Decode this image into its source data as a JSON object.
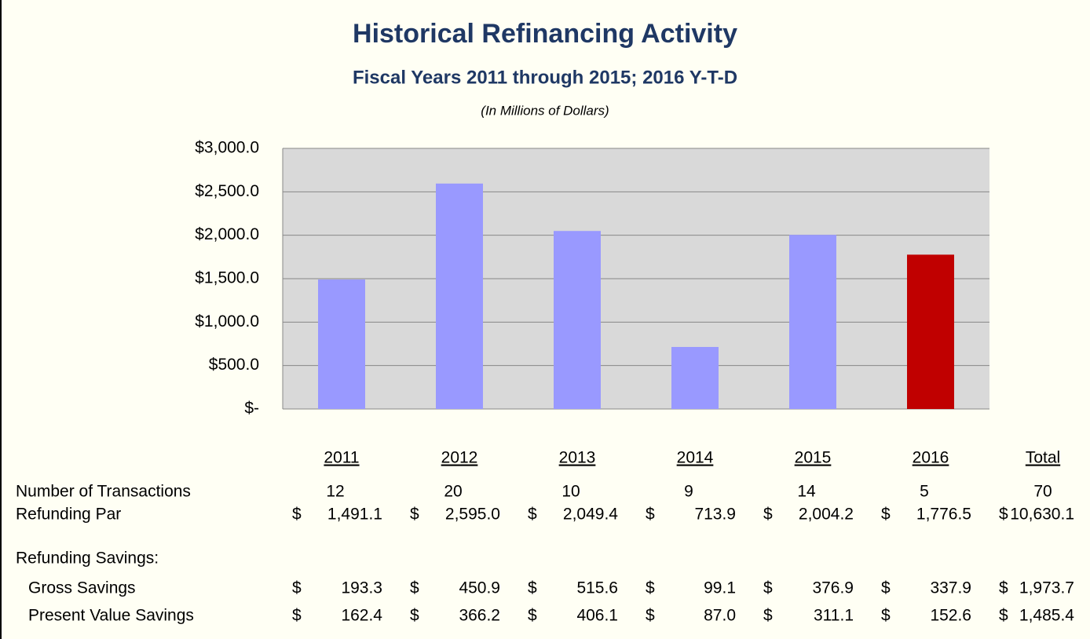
{
  "chart_data": {
    "type": "bar",
    "title": "Historical Refinancing Activity",
    "subtitle": "Fiscal Years 2011 through 2015; 2016 Y-T-D",
    "note": "(In Millions of Dollars)",
    "categories": [
      "2011",
      "2012",
      "2013",
      "2014",
      "2015",
      "2016"
    ],
    "values": [
      1491.1,
      2595.0,
      2049.4,
      713.9,
      2004.2,
      1776.5
    ],
    "value_labels": [
      "1,491.1",
      "2,595.0",
      "2,049.4",
      "713.9",
      "2,004.2",
      "1,776.5"
    ],
    "colors": [
      "#9999ff",
      "#9999ff",
      "#9999ff",
      "#9999ff",
      "#9999ff",
      "#c00000"
    ],
    "ylim": [
      0,
      3000
    ],
    "yticks": [
      {
        "value": 0,
        "label": "$-"
      },
      {
        "value": 500,
        "label": "$500.0"
      },
      {
        "value": 1000,
        "label": "$1,000.0"
      },
      {
        "value": 1500,
        "label": "$1,500.0"
      },
      {
        "value": 2000,
        "label": "$2,000.0"
      },
      {
        "value": 2500,
        "label": "$2,500.0"
      },
      {
        "value": 3000,
        "label": "$3,000.0"
      }
    ],
    "grid": true
  },
  "table": {
    "total_header": "Total",
    "currency": "$",
    "transactions": {
      "label": "Number of Transactions",
      "cells": [
        "12",
        "20",
        "10",
        "9",
        "14",
        "5"
      ],
      "total": "70"
    },
    "par": {
      "label": "Refunding Par",
      "total": "10,630.1"
    },
    "section": "Refunding Savings:",
    "savings": [
      {
        "label": "Gross Savings",
        "cells": [
          "193.3",
          "450.9",
          "515.6",
          "99.1",
          "376.9",
          "337.9"
        ],
        "total": "1,973.7"
      },
      {
        "label": "Present Value Savings",
        "cells": [
          "162.4",
          "366.2",
          "406.1",
          "87.0",
          "311.1",
          "152.6"
        ],
        "total": "1,485.4"
      }
    ]
  }
}
